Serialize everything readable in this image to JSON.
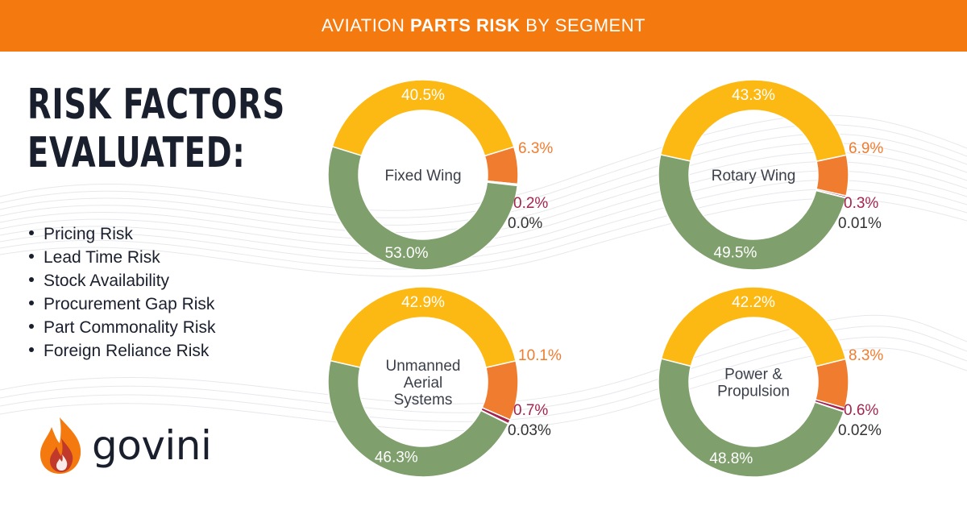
{
  "banner": {
    "prefix": "AVIATION",
    "bold": "PARTS RISK",
    "suffix": "BY SEGMENT"
  },
  "heading": {
    "line1": "RISK FACTORS",
    "line2": "EVALUATED:"
  },
  "factors": [
    "Pricing Risk",
    "Lead Time Risk",
    "Stock Availability",
    "Procurement Gap Risk",
    "Part Commonality Risk",
    "Foreign Reliance Risk"
  ],
  "logo": {
    "text": "govini"
  },
  "colors": {
    "banner": "#f4790f",
    "yellow": "#fdb913",
    "orange": "#f07c2f",
    "maroon": "#a3244f",
    "green": "#7f9f6c",
    "dark": "#1a1f2e"
  },
  "chart_data": [
    {
      "type": "pie",
      "title": "Fixed Wing",
      "center_lines": [
        "Fixed Wing"
      ],
      "series": [
        {
          "name": "yellow",
          "value": 40.5,
          "label": "40.5%"
        },
        {
          "name": "orange",
          "value": 6.3,
          "label": "6.3%"
        },
        {
          "name": "maroon",
          "value": 0.2,
          "label": "0.2%"
        },
        {
          "name": "dark",
          "value": 0.0,
          "label": "0.0%"
        },
        {
          "name": "green",
          "value": 53.0,
          "label": "53.0%"
        }
      ]
    },
    {
      "type": "pie",
      "title": "Rotary Wing",
      "center_lines": [
        "Rotary Wing"
      ],
      "series": [
        {
          "name": "yellow",
          "value": 43.3,
          "label": "43.3%"
        },
        {
          "name": "orange",
          "value": 6.9,
          "label": "6.9%"
        },
        {
          "name": "maroon",
          "value": 0.3,
          "label": "0.3%"
        },
        {
          "name": "dark",
          "value": 0.01,
          "label": "0.01%"
        },
        {
          "name": "green",
          "value": 49.5,
          "label": "49.5%"
        }
      ]
    },
    {
      "type": "pie",
      "title": "Unmanned Aerial Systems",
      "center_lines": [
        "Unmanned",
        "Aerial",
        "Systems"
      ],
      "series": [
        {
          "name": "yellow",
          "value": 42.9,
          "label": "42.9%"
        },
        {
          "name": "orange",
          "value": 10.1,
          "label": "10.1%"
        },
        {
          "name": "maroon",
          "value": 0.7,
          "label": "0.7%"
        },
        {
          "name": "dark",
          "value": 0.03,
          "label": "0.03%"
        },
        {
          "name": "green",
          "value": 46.3,
          "label": "46.3%"
        }
      ]
    },
    {
      "type": "pie",
      "title": "Power & Propulsion",
      "center_lines": [
        "Power &",
        "Propulsion"
      ],
      "series": [
        {
          "name": "yellow",
          "value": 42.2,
          "label": "42.2%"
        },
        {
          "name": "orange",
          "value": 8.3,
          "label": "8.3%"
        },
        {
          "name": "maroon",
          "value": 0.6,
          "label": "0.6%"
        },
        {
          "name": "dark",
          "value": 0.02,
          "label": "0.02%"
        },
        {
          "name": "green",
          "value": 48.8,
          "label": "48.8%"
        }
      ]
    }
  ]
}
